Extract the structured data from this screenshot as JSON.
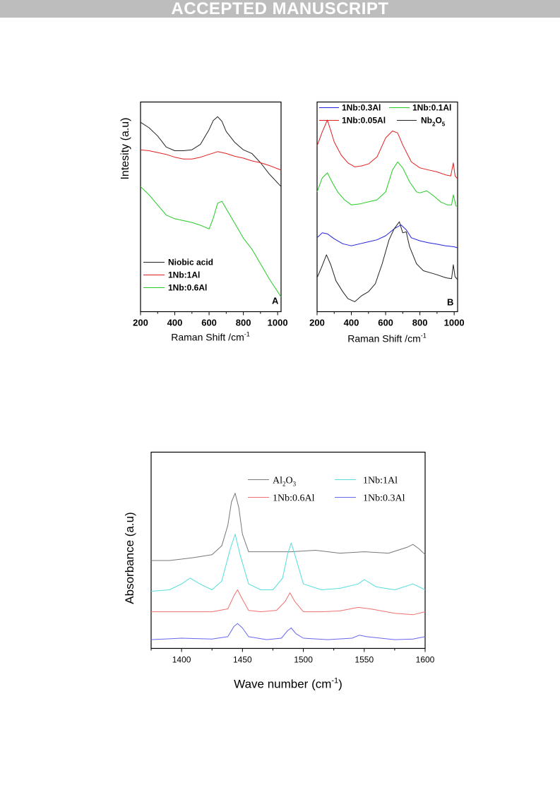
{
  "banner": "ACCEPTED MANUSCRIPT",
  "chart_data": [
    {
      "type": "line",
      "panel_letter": "A",
      "xlabel": "Raman Shift /cm",
      "xlabel_sup": "-1",
      "ylabel": "Intesity (a.u)",
      "xlim": [
        200,
        1020
      ],
      "x_ticks": [
        200,
        400,
        600,
        800,
        1000
      ],
      "legend_position": "bottom-left",
      "series": [
        {
          "name": "Niobic acid",
          "color": "#222222",
          "x": [
            200,
            250,
            300,
            350,
            400,
            450,
            500,
            550,
            600,
            625,
            650,
            675,
            700,
            750,
            800,
            850,
            900,
            950,
            1020
          ],
          "y": [
            4.5,
            4.2,
            3.75,
            3.15,
            2.95,
            2.95,
            3.0,
            3.3,
            4.1,
            4.6,
            4.8,
            4.55,
            4.0,
            3.4,
            3.0,
            2.8,
            2.3,
            1.7,
            1.0
          ]
        },
        {
          "name": "1Nb:1Al",
          "color": "#e02020",
          "x": [
            200,
            250,
            300,
            350,
            400,
            450,
            500,
            550,
            600,
            650,
            700,
            750,
            800,
            850,
            900,
            950,
            1020
          ],
          "y": [
            3.0,
            2.95,
            2.85,
            2.75,
            2.6,
            2.5,
            2.5,
            2.6,
            2.75,
            2.9,
            2.8,
            2.65,
            2.55,
            2.4,
            2.3,
            2.15,
            1.9
          ]
        },
        {
          "name": "1Nb:0.6Al",
          "color": "#22cc22",
          "x": [
            200,
            250,
            300,
            350,
            400,
            450,
            500,
            550,
            600,
            625,
            650,
            675,
            700,
            750,
            800,
            850,
            900,
            950,
            1020
          ],
          "y": [
            1.0,
            0.55,
            0.0,
            -0.55,
            -0.75,
            -0.85,
            -0.95,
            -1.1,
            -1.3,
            -0.7,
            0.1,
            0.2,
            -0.2,
            -1.0,
            -1.8,
            -2.4,
            -3.2,
            -4.0,
            -5.0
          ]
        }
      ]
    },
    {
      "type": "line",
      "panel_letter": "B",
      "xlabel": "Raman Shift /cm",
      "xlabel_sup": "-1",
      "xlim": [
        200,
        1020
      ],
      "x_ticks": [
        200,
        400,
        600,
        800,
        1000
      ],
      "legend_position": "top",
      "series": [
        {
          "name": "1Nb:0.3Al",
          "color": "#2222dd",
          "x": [
            200,
            230,
            260,
            300,
            350,
            400,
            450,
            500,
            550,
            600,
            650,
            690,
            720,
            750,
            800,
            850,
            900,
            950,
            1000,
            1020
          ],
          "y": [
            1.3,
            1.55,
            1.5,
            1.25,
            1.0,
            0.9,
            1.0,
            1.1,
            1.2,
            1.4,
            1.75,
            1.95,
            1.7,
            1.3,
            1.15,
            1.05,
            0.98,
            0.9,
            0.85,
            0.8
          ]
        },
        {
          "name": "1Nb:0.1Al",
          "color": "#22cc22",
          "x": [
            200,
            230,
            260,
            290,
            320,
            360,
            400,
            450,
            500,
            550,
            600,
            640,
            670,
            700,
            740,
            780,
            800,
            840,
            880,
            920,
            960,
            985,
            995,
            1010,
            1020
          ],
          "y": [
            3.6,
            4.3,
            4.55,
            4.05,
            3.6,
            3.2,
            2.95,
            3.0,
            3.1,
            3.2,
            3.6,
            4.7,
            5.1,
            4.8,
            4.1,
            3.6,
            3.55,
            3.65,
            3.4,
            3.1,
            2.95,
            2.95,
            3.45,
            2.9,
            2.85
          ]
        },
        {
          "name": "1Nb:0.05Al",
          "color": "#e02020",
          "x": [
            200,
            230,
            260,
            275,
            300,
            340,
            380,
            420,
            460,
            500,
            550,
            600,
            640,
            670,
            700,
            750,
            800,
            850,
            900,
            950,
            980,
            995,
            1005,
            1020
          ],
          "y": [
            5.9,
            6.6,
            7.2,
            6.8,
            6.1,
            5.45,
            5.05,
            4.85,
            4.9,
            5.0,
            5.35,
            6.3,
            6.65,
            6.55,
            5.95,
            5.1,
            4.8,
            4.7,
            4.6,
            4.45,
            4.4,
            5.05,
            4.4,
            4.25
          ]
        },
        {
          "name": "Nb",
          "name_sub1": "2",
          "name_mid": "O",
          "name_sub2": "5",
          "color": "#222222",
          "x": [
            200,
            225,
            255,
            280,
            310,
            350,
            380,
            420,
            460,
            500,
            540,
            580,
            620,
            650,
            680,
            700,
            720,
            740,
            780,
            820,
            860,
            900,
            950,
            985,
            995,
            1005,
            1020
          ],
          "y": [
            -0.7,
            -0.2,
            0.45,
            -0.05,
            -0.85,
            -1.4,
            -1.75,
            -1.9,
            -1.6,
            -1.4,
            -1.0,
            0.0,
            1.2,
            1.75,
            2.1,
            1.55,
            1.6,
            0.85,
            0.0,
            -0.35,
            -0.45,
            -0.55,
            -0.7,
            -0.75,
            -0.05,
            -0.65,
            -0.8
          ]
        }
      ]
    },
    {
      "type": "line",
      "xlabel": "Wave number (cm",
      "xlabel_sup": "-1",
      "xlabel_close": ")",
      "ylabel": "Absorbance (a.u)",
      "xlim": [
        1375,
        1600
      ],
      "x_ticks": [
        1400,
        1450,
        1500,
        1550,
        1600
      ],
      "legend_position": "top-right",
      "series": [
        {
          "name": "Al",
          "name_sub1": "2",
          "name_mid": "O",
          "name_sub2": "3",
          "color": "#777777",
          "x": [
            1375,
            1390,
            1410,
            1425,
            1433,
            1438,
            1441,
            1444,
            1447,
            1450,
            1455,
            1462,
            1475,
            1490,
            1510,
            1530,
            1550,
            1570,
            1585,
            1590,
            1595,
            1600
          ],
          "y": [
            3.0,
            3.0,
            3.1,
            3.2,
            3.5,
            4.2,
            5.0,
            5.3,
            4.8,
            3.9,
            3.3,
            3.3,
            3.3,
            3.3,
            3.35,
            3.25,
            3.3,
            3.25,
            3.45,
            3.55,
            3.4,
            3.2
          ]
        },
        {
          "name": "1Nb:1Al",
          "color": "#55dddd",
          "x": [
            1375,
            1390,
            1400,
            1407,
            1415,
            1425,
            1433,
            1440,
            1444,
            1448,
            1455,
            1465,
            1475,
            1483,
            1487,
            1490,
            1493,
            1500,
            1515,
            1530,
            1545,
            1550,
            1560,
            1575,
            1590,
            1600
          ],
          "y": [
            1.95,
            2.0,
            2.2,
            2.4,
            2.2,
            2.0,
            2.3,
            3.4,
            3.9,
            3.2,
            2.2,
            2.0,
            2.0,
            2.4,
            3.2,
            3.6,
            3.2,
            2.2,
            2.0,
            2.05,
            2.2,
            2.35,
            2.1,
            2.0,
            2.2,
            2.0
          ]
        },
        {
          "name": "1Nb:0.6Al",
          "color": "#f07070",
          "x": [
            1375,
            1400,
            1425,
            1438,
            1443,
            1446,
            1449,
            1455,
            1465,
            1478,
            1485,
            1489,
            1493,
            1500,
            1515,
            1530,
            1545,
            1555,
            1575,
            1590,
            1600
          ],
          "y": [
            1.25,
            1.25,
            1.25,
            1.35,
            1.8,
            2.0,
            1.75,
            1.3,
            1.25,
            1.3,
            1.6,
            1.9,
            1.6,
            1.25,
            1.25,
            1.28,
            1.4,
            1.35,
            1.2,
            1.15,
            1.25
          ]
        },
        {
          "name": "1Nb:0.3Al",
          "color": "#6666ee",
          "x": [
            1375,
            1400,
            1425,
            1438,
            1443,
            1446,
            1450,
            1455,
            1470,
            1482,
            1487,
            1490,
            1494,
            1500,
            1520,
            1540,
            1546,
            1552,
            1575,
            1590,
            1600
          ],
          "y": [
            0.3,
            0.35,
            0.32,
            0.4,
            0.75,
            0.85,
            0.7,
            0.4,
            0.3,
            0.35,
            0.6,
            0.7,
            0.5,
            0.35,
            0.3,
            0.35,
            0.45,
            0.4,
            0.3,
            0.32,
            0.4
          ]
        }
      ]
    }
  ]
}
